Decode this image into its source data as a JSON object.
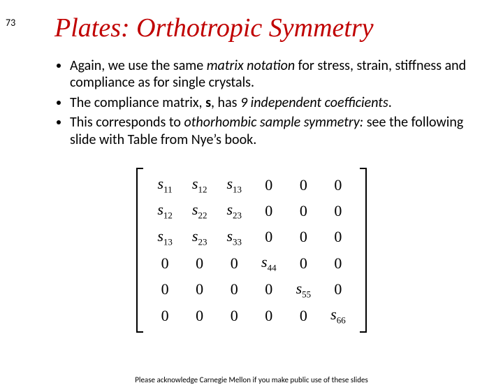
{
  "slide_number": "73",
  "title": "Plates: Orthotropic Symmetry",
  "bullets": [
    {
      "pre": "Again, we use the same ",
      "em1": "matrix notation",
      "post": " for stress, strain, stiffness and compliance as for single crystals."
    },
    {
      "pre": "The compliance matrix, ",
      "bold": "s",
      "mid": ", has ",
      "em1": "9 independent coefficients",
      "post": "."
    },
    {
      "pre": "This corresponds to ",
      "em1": "othorhombic sample symmetry:",
      "post": " see the following slide with Table from Nye’s book."
    }
  ],
  "matrix": {
    "rows": [
      [
        "s11",
        "s12",
        "s13",
        "0",
        "0",
        "0"
      ],
      [
        "s12",
        "s22",
        "s23",
        "0",
        "0",
        "0"
      ],
      [
        "s13",
        "s23",
        "s33",
        "0",
        "0",
        "0"
      ],
      [
        "0",
        "0",
        "0",
        "s44",
        "0",
        "0"
      ],
      [
        "0",
        "0",
        "0",
        "0",
        "s55",
        "0"
      ],
      [
        "0",
        "0",
        "0",
        "0",
        "0",
        "s66"
      ]
    ]
  },
  "footer": "Please acknowledge Carnegie Mellon if you make public use of these slides"
}
